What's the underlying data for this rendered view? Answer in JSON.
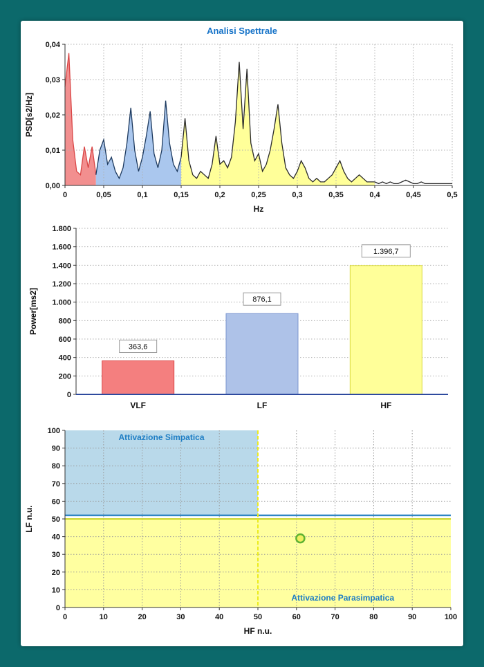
{
  "theme": {
    "frame_color": "#0c696b",
    "panel_color": "#ffffff",
    "title_color": "#1673c8",
    "grid_color": "#b0b0b0",
    "axis_color": "#333333"
  },
  "chart_data": [
    {
      "type": "area",
      "name": "spectral-psd",
      "title": "Analisi Spettrale",
      "xlabel": "Hz",
      "ylabel": "PSD[s2/Hz]",
      "xlim": [
        0,
        0.5
      ],
      "ylim": [
        0,
        0.04
      ],
      "xticks": [
        0,
        0.05,
        0.1,
        0.15,
        0.2,
        0.25,
        0.3,
        0.35,
        0.4,
        0.45,
        0.5
      ],
      "xtick_labels": [
        "0",
        "0,05",
        "0,1",
        "0,15",
        "0,2",
        "0,25",
        "0,3",
        "0,35",
        "0,4",
        "0,45",
        "0,5"
      ],
      "yticks": [
        0,
        0.01,
        0.02,
        0.03,
        0.04
      ],
      "ytick_labels": [
        "0,00",
        "0,01",
        "0,02",
        "0,03",
        "0,04"
      ],
      "bands": [
        {
          "name": "VLF",
          "from": 0.0,
          "to": 0.04,
          "fill": "#f28f8f",
          "stroke": "#d94545"
        },
        {
          "name": "LF",
          "from": 0.04,
          "to": 0.15,
          "fill": "#aac7ee",
          "stroke": "#1d3a5f"
        },
        {
          "name": "HF",
          "from": 0.15,
          "to": 0.4,
          "fill": "#ffff99",
          "stroke": "#2a2a2a"
        }
      ],
      "tail_stroke": "#2a2a2a",
      "points": [
        [
          0.0,
          0.028
        ],
        [
          0.005,
          0.0375
        ],
        [
          0.01,
          0.013
        ],
        [
          0.015,
          0.004
        ],
        [
          0.02,
          0.003
        ],
        [
          0.025,
          0.011
        ],
        [
          0.03,
          0.005
        ],
        [
          0.035,
          0.011
        ],
        [
          0.04,
          0.003
        ],
        [
          0.045,
          0.01
        ],
        [
          0.05,
          0.013
        ],
        [
          0.055,
          0.006
        ],
        [
          0.06,
          0.008
        ],
        [
          0.065,
          0.004
        ],
        [
          0.07,
          0.002
        ],
        [
          0.075,
          0.005
        ],
        [
          0.08,
          0.012
        ],
        [
          0.085,
          0.022
        ],
        [
          0.09,
          0.01
        ],
        [
          0.095,
          0.004
        ],
        [
          0.1,
          0.008
        ],
        [
          0.105,
          0.014
        ],
        [
          0.11,
          0.021
        ],
        [
          0.115,
          0.009
        ],
        [
          0.12,
          0.005
        ],
        [
          0.125,
          0.01
        ],
        [
          0.13,
          0.024
        ],
        [
          0.135,
          0.012
        ],
        [
          0.14,
          0.006
        ],
        [
          0.145,
          0.004
        ],
        [
          0.15,
          0.008
        ],
        [
          0.155,
          0.019
        ],
        [
          0.16,
          0.007
        ],
        [
          0.165,
          0.003
        ],
        [
          0.17,
          0.002
        ],
        [
          0.175,
          0.004
        ],
        [
          0.18,
          0.003
        ],
        [
          0.185,
          0.002
        ],
        [
          0.19,
          0.006
        ],
        [
          0.195,
          0.014
        ],
        [
          0.2,
          0.006
        ],
        [
          0.205,
          0.007
        ],
        [
          0.21,
          0.005
        ],
        [
          0.215,
          0.008
        ],
        [
          0.22,
          0.018
        ],
        [
          0.225,
          0.035
        ],
        [
          0.23,
          0.016
        ],
        [
          0.235,
          0.033
        ],
        [
          0.24,
          0.012
        ],
        [
          0.245,
          0.007
        ],
        [
          0.25,
          0.009
        ],
        [
          0.255,
          0.004
        ],
        [
          0.26,
          0.006
        ],
        [
          0.265,
          0.01
        ],
        [
          0.27,
          0.016
        ],
        [
          0.275,
          0.023
        ],
        [
          0.28,
          0.012
        ],
        [
          0.285,
          0.005
        ],
        [
          0.29,
          0.003
        ],
        [
          0.295,
          0.002
        ],
        [
          0.3,
          0.004
        ],
        [
          0.305,
          0.007
        ],
        [
          0.31,
          0.005
        ],
        [
          0.315,
          0.002
        ],
        [
          0.32,
          0.001
        ],
        [
          0.325,
          0.002
        ],
        [
          0.33,
          0.001
        ],
        [
          0.335,
          0.001
        ],
        [
          0.34,
          0.002
        ],
        [
          0.345,
          0.003
        ],
        [
          0.35,
          0.005
        ],
        [
          0.355,
          0.007
        ],
        [
          0.36,
          0.004
        ],
        [
          0.365,
          0.002
        ],
        [
          0.37,
          0.001
        ],
        [
          0.375,
          0.002
        ],
        [
          0.38,
          0.003
        ],
        [
          0.385,
          0.002
        ],
        [
          0.39,
          0.001
        ],
        [
          0.395,
          0.001
        ],
        [
          0.4,
          0.001
        ],
        [
          0.405,
          0.0005
        ],
        [
          0.41,
          0.001
        ],
        [
          0.415,
          0.0005
        ],
        [
          0.42,
          0.001
        ],
        [
          0.425,
          0.0005
        ],
        [
          0.43,
          0.0005
        ],
        [
          0.435,
          0.001
        ],
        [
          0.44,
          0.0015
        ],
        [
          0.445,
          0.001
        ],
        [
          0.45,
          0.0005
        ],
        [
          0.455,
          0.0005
        ],
        [
          0.46,
          0.001
        ],
        [
          0.465,
          0.0005
        ],
        [
          0.47,
          0.0005
        ],
        [
          0.475,
          0.0005
        ],
        [
          0.48,
          0.0005
        ],
        [
          0.485,
          0.0005
        ],
        [
          0.49,
          0.0005
        ],
        [
          0.495,
          0.0005
        ],
        [
          0.5,
          0.0005
        ]
      ]
    },
    {
      "type": "bar",
      "name": "band-power",
      "ylabel": "Power[ms2]",
      "categories": [
        "VLF",
        "LF",
        "HF"
      ],
      "values": [
        363.6,
        876.1,
        1396.7
      ],
      "value_labels": [
        "363,6",
        "876,1",
        "1.396,7"
      ],
      "bar_fills": [
        "#f47f7f",
        "#aec2e8",
        "#ffff99"
      ],
      "bar_strokes": [
        "#d94545",
        "#7a94ce",
        "#d9d93a"
      ],
      "ylim": [
        0,
        1800
      ],
      "yticks": [
        0,
        200,
        400,
        600,
        800,
        1000,
        1200,
        1400,
        1600,
        1800
      ],
      "ytick_labels": [
        "0",
        "200",
        "400",
        "600",
        "800",
        "1.000",
        "1.200",
        "1.400",
        "1.600",
        "1.800"
      ],
      "baseline_color": "#2e4a9e"
    },
    {
      "type": "scatter",
      "name": "sympathovagal-balance",
      "xlabel": "HF n.u.",
      "ylabel": "LF n.u.",
      "xlim": [
        0,
        100
      ],
      "ylim": [
        0,
        100
      ],
      "ticks": [
        0,
        10,
        20,
        30,
        40,
        50,
        60,
        70,
        80,
        90,
        100
      ],
      "tick_labels": [
        "0",
        "10",
        "20",
        "30",
        "40",
        "50",
        "60",
        "70",
        "80",
        "90",
        "100"
      ],
      "regions": [
        {
          "label": "Attivazione Simpatica",
          "x": [
            0,
            50
          ],
          "y": [
            52,
            100
          ],
          "fill": "#b9d9ea",
          "label_color": "#1d7dc4",
          "label_pos": [
            25,
            94.5
          ]
        },
        {
          "label": "Attivazione Parasimpatica",
          "x": [
            0,
            100
          ],
          "y": [
            0,
            50
          ],
          "fill": "#ffffa0",
          "label_color": "#1d7dc4",
          "label_pos": [
            72,
            4
          ]
        }
      ],
      "yellow_line": {
        "y": 50,
        "color": "#c9d42a"
      },
      "blue_line": {
        "y": 52,
        "color": "#2f86c4"
      },
      "dashed_line": {
        "x": 50,
        "color": "#ecec1c"
      },
      "point": {
        "x": 61,
        "y": 39,
        "fill": "#f0f060",
        "stroke": "#5fb332"
      }
    }
  ]
}
